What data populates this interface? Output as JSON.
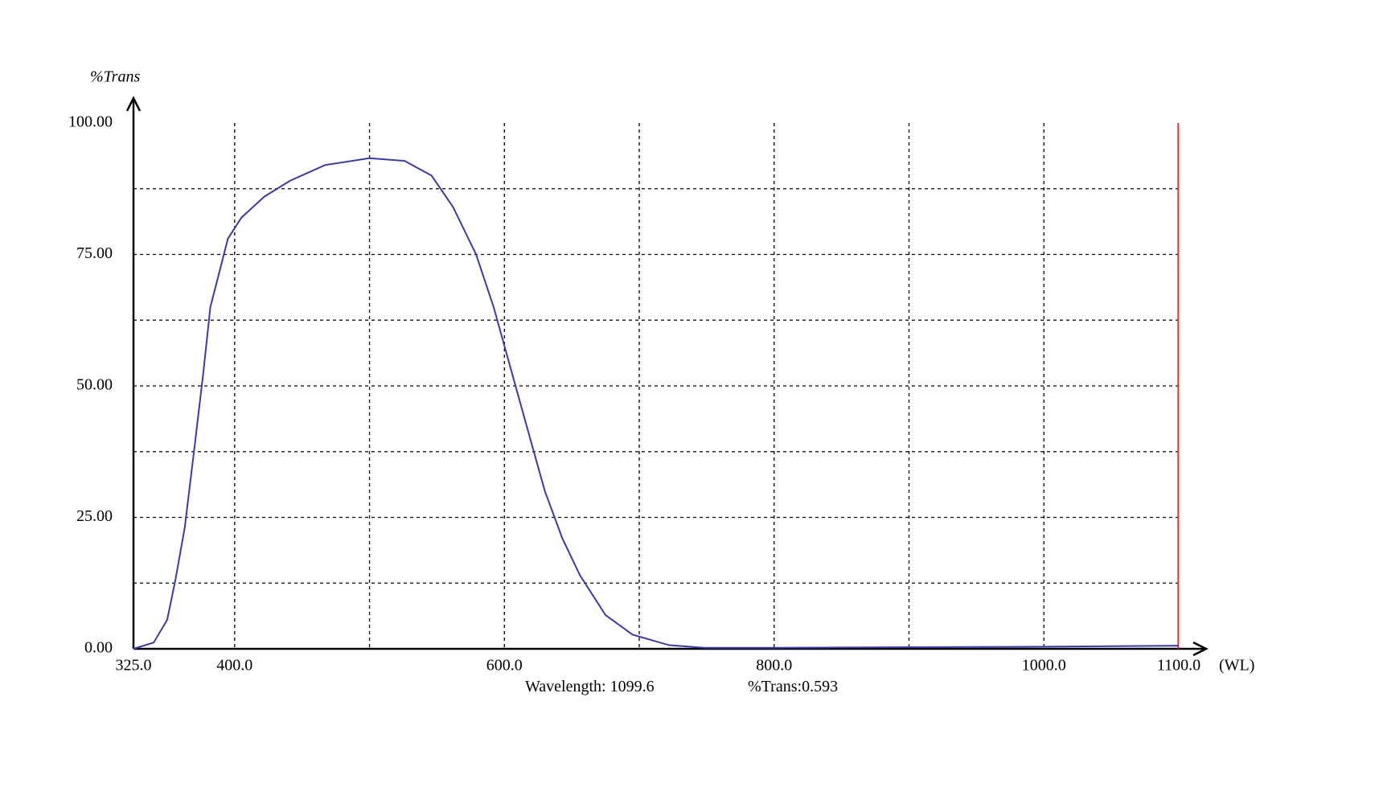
{
  "chart_data": {
    "type": "line",
    "y_label": "%Trans",
    "x_label": "(WL)",
    "xlim": [
      325,
      1100
    ],
    "ylim": [
      0,
      100
    ],
    "xticks": [
      {
        "value": 325,
        "label": "325.0"
      },
      {
        "value": 400,
        "label": "400.0"
      },
      {
        "value": 600,
        "label": "600.0"
      },
      {
        "value": 800,
        "label": "800.0"
      },
      {
        "value": 1000,
        "label": "1000.0"
      },
      {
        "value": 1100,
        "label": "1100.0"
      }
    ],
    "yticks": [
      {
        "value": 0,
        "label": "0.00"
      },
      {
        "value": 25,
        "label": "25.00"
      },
      {
        "value": 50,
        "label": "50.00"
      },
      {
        "value": 75,
        "label": "75.00"
      },
      {
        "value": 100,
        "label": "100.00"
      }
    ],
    "xgrid": [
      400,
      500,
      600,
      700,
      800,
      900,
      1000
    ],
    "ygrid": [
      12.5,
      25,
      37.5,
      50,
      62.5,
      75,
      87.5
    ],
    "grid": true,
    "series": [
      {
        "color": "#3a3aa8",
        "x": [
          325,
          340,
          350,
          356,
          363,
          371,
          377,
          382,
          389,
          395,
          405,
          422,
          441,
          467,
          500,
          526,
          546,
          562,
          579,
          592,
          605,
          618,
          630,
          643,
          656,
          675,
          695,
          722,
          748,
          800,
          900,
          1000,
          1100
        ],
        "values": [
          0,
          1.2,
          5.5,
          13,
          23,
          40,
          53,
          65,
          72,
          78,
          82,
          86,
          89,
          92,
          93.3,
          92.8,
          90,
          84,
          75,
          65,
          53,
          41,
          30,
          21,
          14,
          6.4,
          2.7,
          0.7,
          0.2,
          0.2,
          0.3,
          0.4,
          0.6
        ]
      }
    ],
    "cursor": {
      "color": "#e03030",
      "wavelength_label": "Wavelength:",
      "wavelength": 1099.6,
      "trans_label": "%Trans:",
      "trans": 0.593
    }
  }
}
